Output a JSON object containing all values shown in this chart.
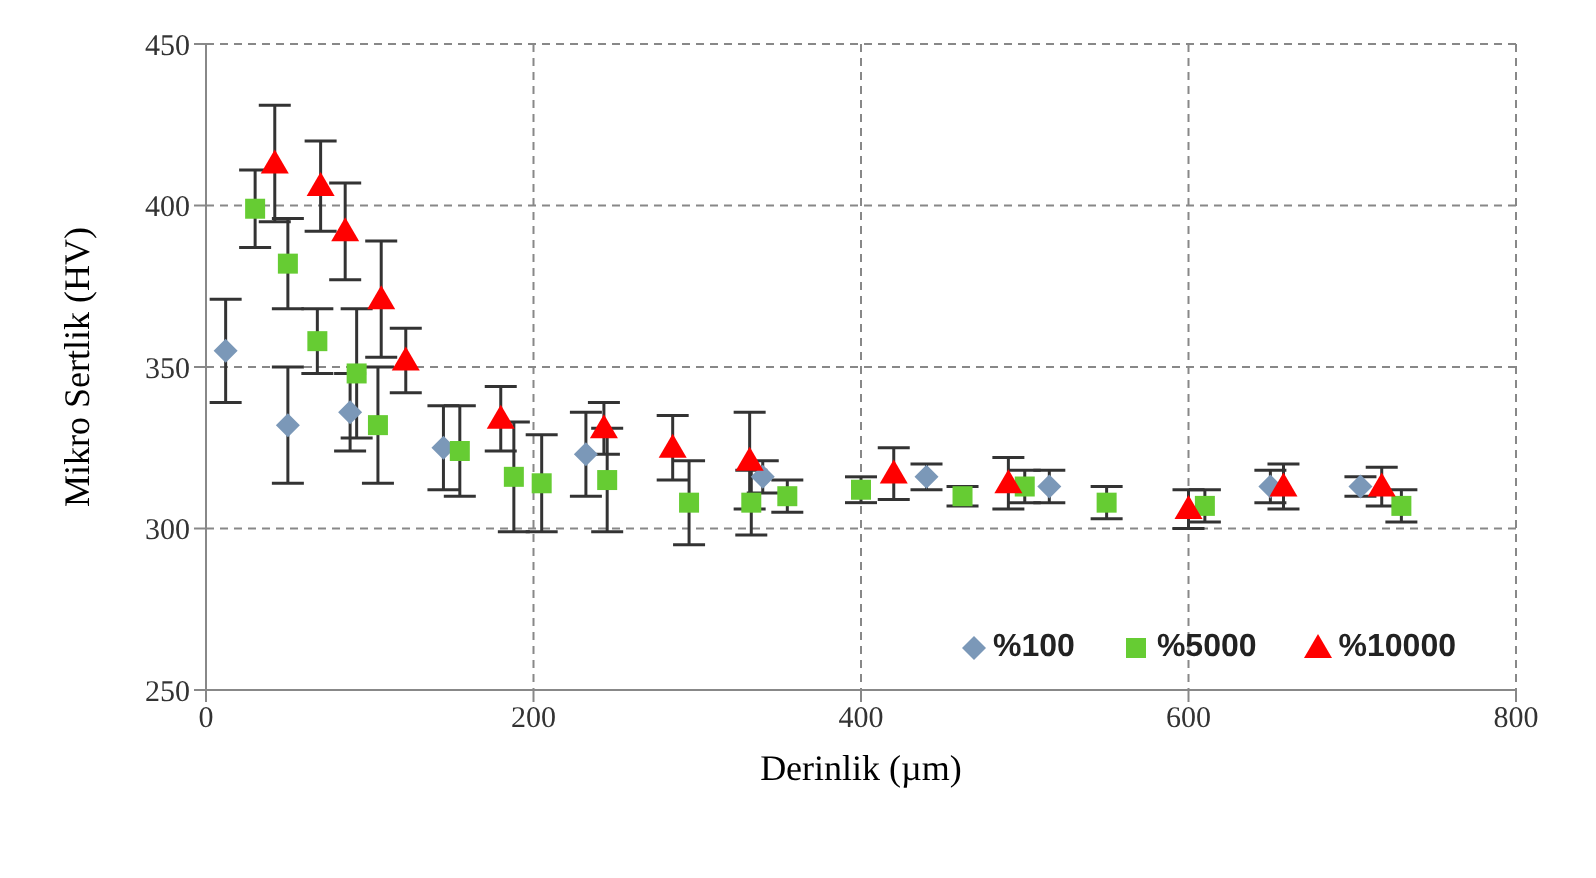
{
  "chart_data": {
    "type": "scatter",
    "xlabel": "Derinlik (µm)",
    "ylabel": "Mikro Sertlik (HV)",
    "xlim": [
      0,
      800
    ],
    "xticks": [
      0,
      200,
      400,
      600,
      800
    ],
    "ylim": [
      250,
      450
    ],
    "yticks": [
      250,
      300,
      350,
      400,
      450
    ],
    "grid": true,
    "legend": "bottom right",
    "series": [
      {
        "name": "%100",
        "color": "#7b98b8",
        "marker": "diamond",
        "x": [
          12,
          50,
          88,
          145,
          232,
          340,
          440,
          515,
          650,
          705
        ],
        "values": [
          355,
          332,
          336,
          325,
          323,
          316,
          316,
          313,
          313,
          313
        ],
        "errors": [
          16,
          18,
          12,
          13,
          13,
          5,
          4,
          5,
          5,
          3
        ]
      },
      {
        "name": "%5000",
        "color": "#66cc33",
        "marker": "square",
        "x": [
          30,
          50,
          68,
          92,
          105,
          155,
          188,
          205,
          245,
          295,
          333,
          355,
          400,
          462,
          500,
          550,
          610,
          730
        ],
        "values": [
          399,
          382,
          358,
          348,
          332,
          324,
          316,
          314,
          315,
          308,
          308,
          310,
          312,
          310,
          313,
          308,
          307,
          307
        ],
        "errors": [
          12,
          14,
          10,
          20,
          18,
          14,
          17,
          15,
          16,
          13,
          10,
          5,
          4,
          3,
          5,
          5,
          5,
          5
        ]
      },
      {
        "name": "%10000",
        "color": "#ff0000",
        "marker": "triangle",
        "x": [
          42,
          70,
          85,
          107,
          122,
          180,
          243,
          285,
          332,
          420,
          490,
          600,
          658,
          718
        ],
        "values": [
          413,
          406,
          392,
          371,
          352,
          334,
          331,
          325,
          321,
          317,
          314,
          306,
          313,
          313
        ],
        "errors": [
          18,
          14,
          15,
          18,
          10,
          10,
          8,
          10,
          15,
          8,
          8,
          6,
          7,
          6
        ]
      }
    ]
  }
}
